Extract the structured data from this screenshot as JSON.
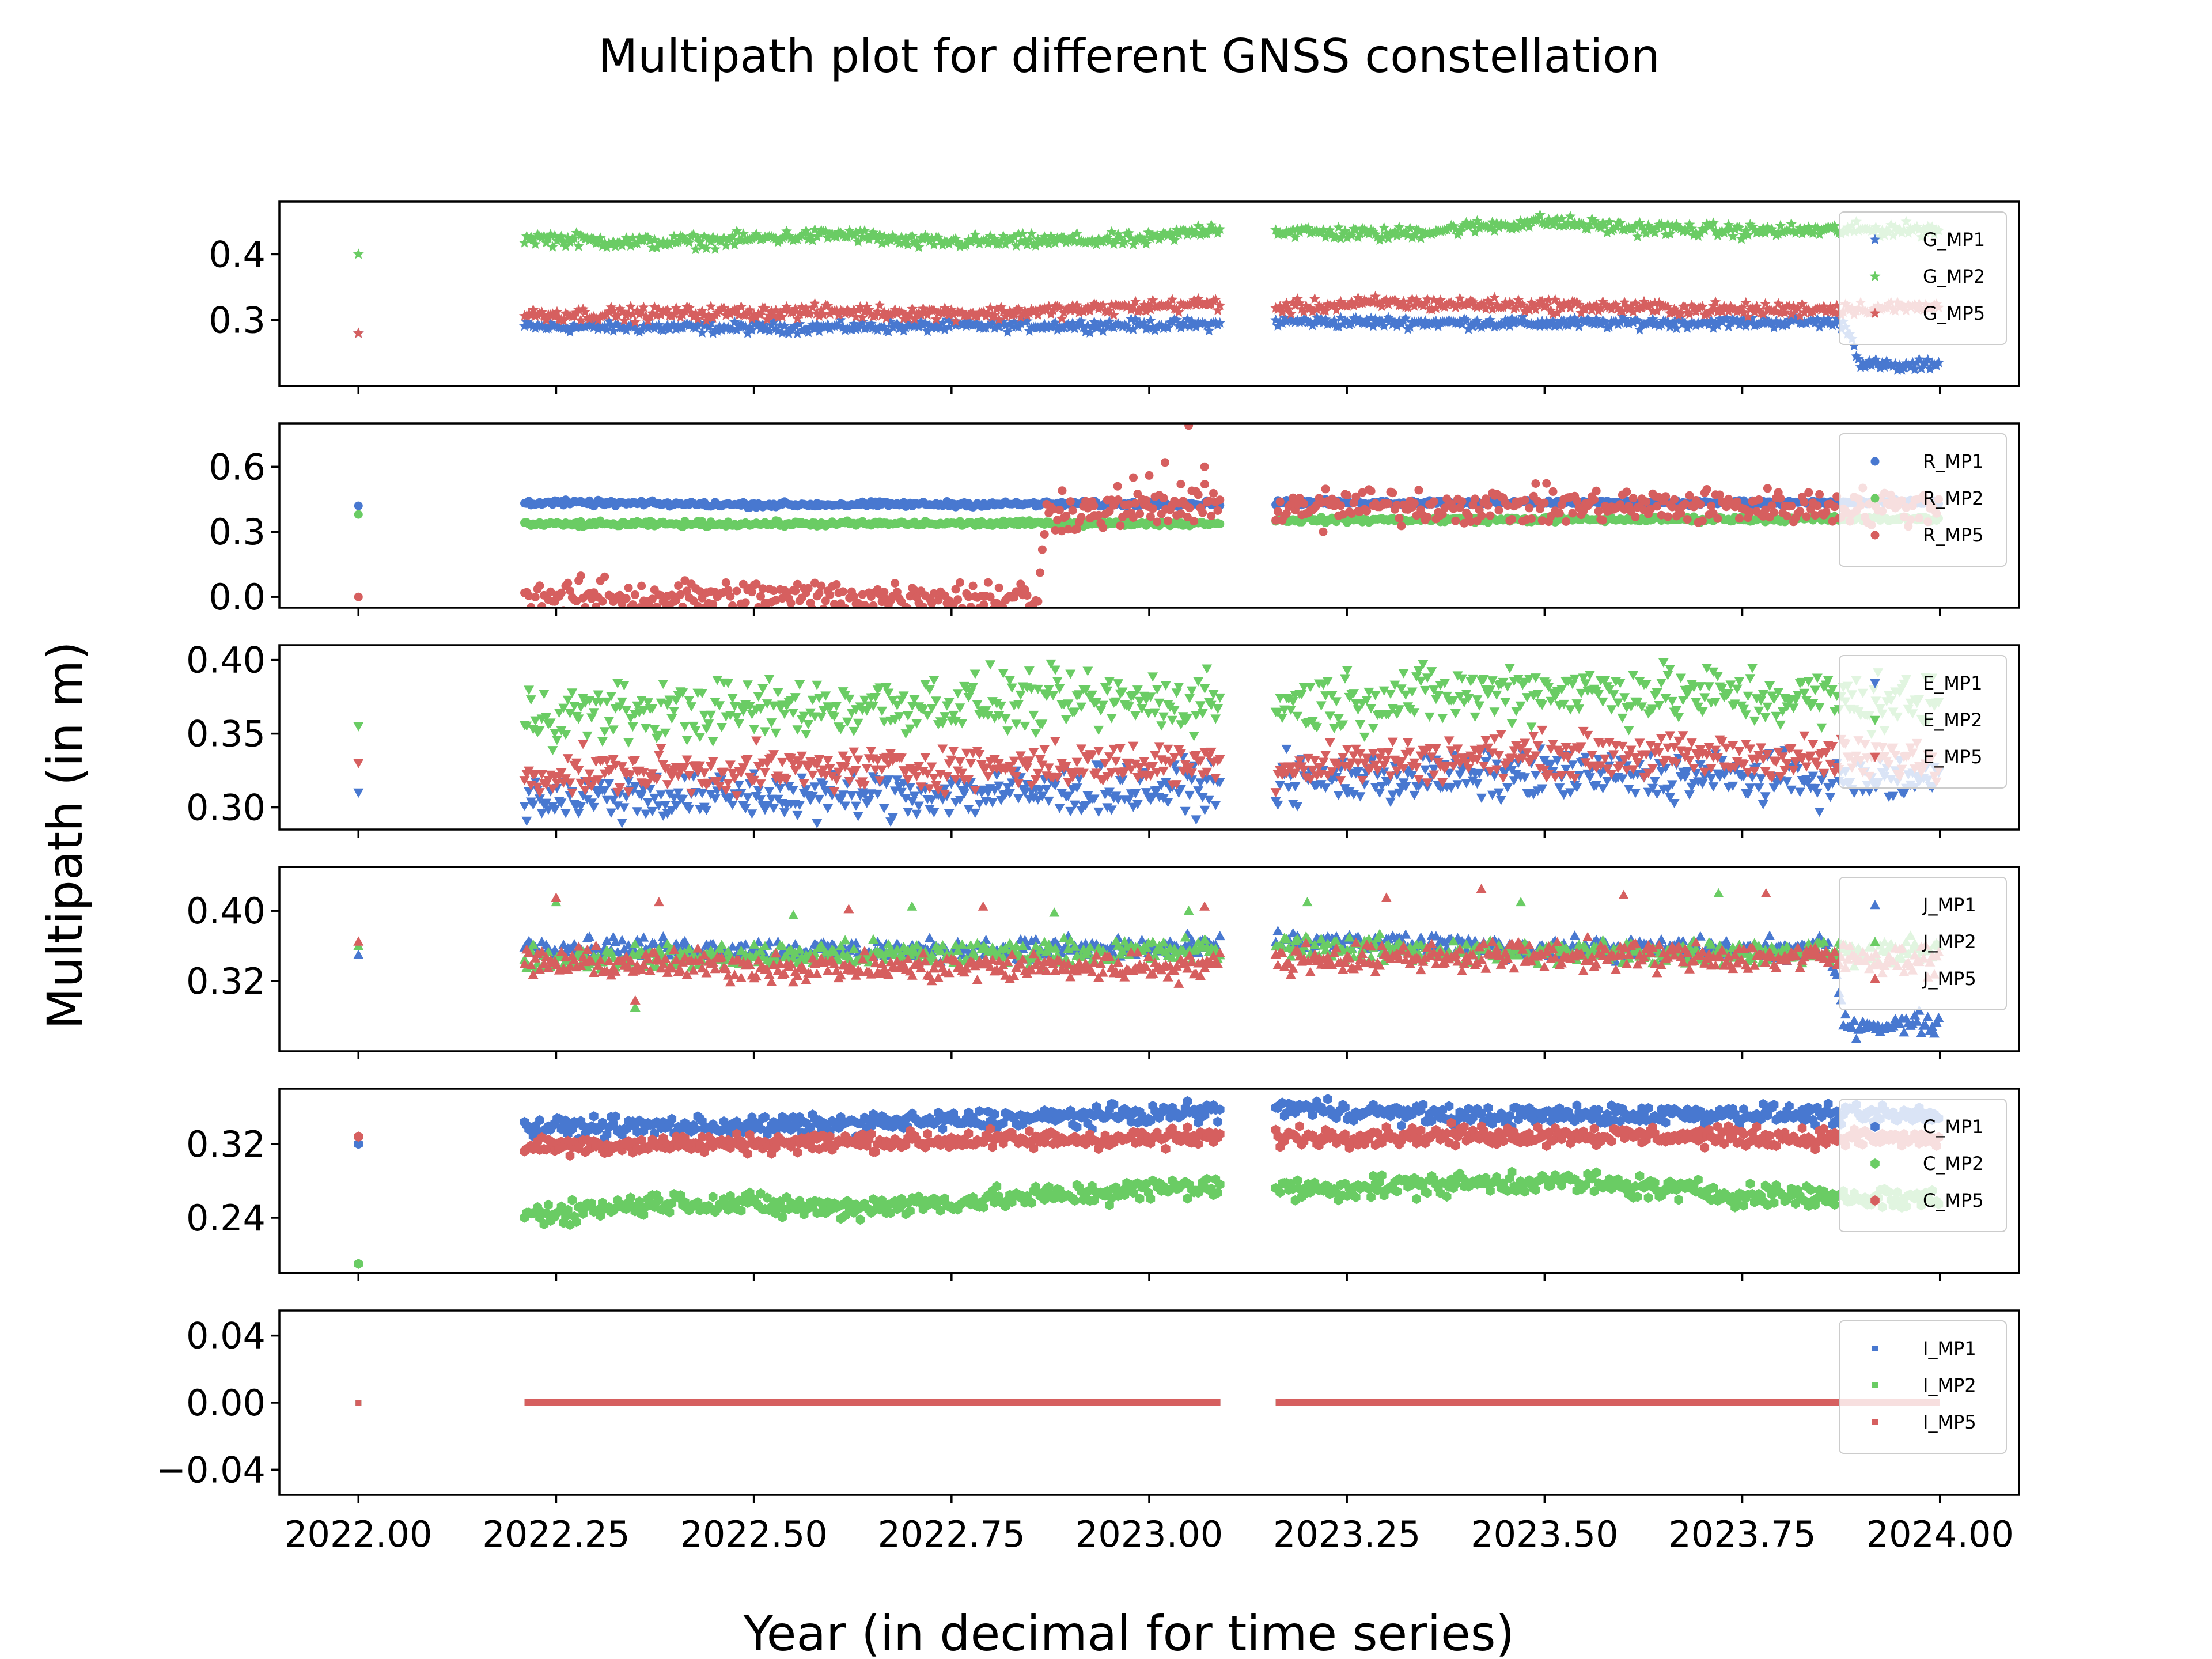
{
  "chart_data": {
    "type": "scatter",
    "title": "Multipath plot for different GNSS constellation",
    "xlabel": "Year (in decimal for time series)",
    "ylabel": "Multipath (in m)",
    "xlim": [
      2021.9,
      2024.1
    ],
    "xticks": [
      2022.0,
      2022.25,
      2022.5,
      2022.75,
      2023.0,
      2023.25,
      2023.5,
      2023.75,
      2024.0
    ],
    "xtick_labels": [
      "2022.00",
      "2022.25",
      "2022.50",
      "2022.75",
      "2023.00",
      "2023.25",
      "2023.50",
      "2023.75",
      "2024.00"
    ],
    "grid": false,
    "legend_location": "right",
    "colors": {
      "MP1": "#4878d0",
      "MP2": "#6acc64",
      "MP5": "#d65f5f"
    },
    "single_epoch": 2022.0,
    "segments": [
      [
        2022.21,
        2023.09
      ],
      [
        2023.16,
        2024.0
      ]
    ],
    "panels": [
      {
        "constellation": "G",
        "marker": "star",
        "ylim": [
          0.2,
          0.48
        ],
        "yticks": [
          0.3,
          0.4
        ],
        "ytick_labels": [
          "0.3",
          "0.4"
        ],
        "series": [
          {
            "name": "G_MP1",
            "initial": 0.28,
            "noise": 0.004,
            "trend": [
              [
                2022.21,
                0.29
              ],
              [
                2022.5,
                0.288
              ],
              [
                2022.75,
                0.291
              ],
              [
                2023.08,
                0.293
              ],
              [
                2023.16,
                0.298
              ],
              [
                2023.5,
                0.295
              ],
              [
                2023.85,
                0.297
              ],
              [
                2023.88,
                0.295
              ],
              [
                2023.9,
                0.235
              ],
              [
                2023.95,
                0.228
              ],
              [
                2024.0,
                0.235
              ]
            ]
          },
          {
            "name": "G_MP2",
            "initial": 0.4,
            "noise": 0.005,
            "trend": [
              [
                2022.21,
                0.425
              ],
              [
                2022.35,
                0.418
              ],
              [
                2022.45,
                0.42
              ],
              [
                2022.55,
                0.427
              ],
              [
                2022.62,
                0.43
              ],
              [
                2022.7,
                0.418
              ],
              [
                2022.85,
                0.42
              ],
              [
                2023.0,
                0.422
              ],
              [
                2023.08,
                0.44
              ],
              [
                2023.16,
                0.435
              ],
              [
                2023.3,
                0.43
              ],
              [
                2023.5,
                0.45
              ],
              [
                2023.6,
                0.44
              ],
              [
                2023.75,
                0.435
              ],
              [
                2024.0,
                0.438
              ]
            ]
          },
          {
            "name": "G_MP5",
            "initial": 0.28,
            "noise": 0.005,
            "trend": [
              [
                2022.21,
                0.308
              ],
              [
                2022.4,
                0.31
              ],
              [
                2022.6,
                0.313
              ],
              [
                2022.8,
                0.31
              ],
              [
                2023.08,
                0.325
              ],
              [
                2023.16,
                0.318
              ],
              [
                2023.3,
                0.326
              ],
              [
                2023.5,
                0.322
              ],
              [
                2023.75,
                0.315
              ],
              [
                2024.0,
                0.32
              ]
            ]
          }
        ]
      },
      {
        "constellation": "R",
        "marker": "circle",
        "ylim": [
          -0.05,
          0.8
        ],
        "yticks": [
          0.0,
          0.3,
          0.6
        ],
        "ytick_labels": [
          "0.0",
          "0.3",
          "0.6"
        ],
        "series": [
          {
            "name": "R_MP1",
            "initial": 0.42,
            "noise": 0.006,
            "trend": [
              [
                2022.21,
                0.435
              ],
              [
                2022.5,
                0.425
              ],
              [
                2023.08,
                0.43
              ],
              [
                2023.16,
                0.435
              ],
              [
                2024.0,
                0.435
              ]
            ]
          },
          {
            "name": "R_MP2",
            "initial": 0.38,
            "noise": 0.006,
            "trend": [
              [
                2022.21,
                0.335
              ],
              [
                2023.08,
                0.34
              ],
              [
                2023.16,
                0.355
              ],
              [
                2024.0,
                0.36
              ]
            ]
          },
          {
            "name": "R_MP5",
            "initial": 0.0,
            "noise": 0.04,
            "trend": [
              [
                2022.21,
                0.0
              ],
              [
                2022.86,
                0.0
              ],
              [
                2022.87,
                0.38
              ],
              [
                2023.08,
                0.42
              ],
              [
                2023.16,
                0.42
              ],
              [
                2024.0,
                0.415
              ]
            ],
            "outliers": [
              [
                2022.89,
                0.49
              ],
              [
                2022.93,
                0.42
              ],
              [
                2022.96,
                0.51
              ],
              [
                2022.98,
                0.55
              ],
              [
                2023.0,
                0.56
              ],
              [
                2023.02,
                0.62
              ],
              [
                2023.04,
                0.52
              ],
              [
                2023.05,
                0.79
              ],
              [
                2023.07,
                0.6
              ],
              [
                2023.22,
                0.3
              ]
            ]
          }
        ]
      },
      {
        "constellation": "E",
        "marker": "triangle-down",
        "ylim": [
          0.285,
          0.41
        ],
        "yticks": [
          0.3,
          0.35,
          0.4
        ],
        "ytick_labels": [
          "0.30",
          "0.35",
          "0.40"
        ],
        "series": [
          {
            "name": "E_MP1",
            "initial": 0.31,
            "noise": 0.008,
            "trend": [
              [
                2022.21,
                0.307
              ],
              [
                2022.6,
                0.308
              ],
              [
                2023.08,
                0.313
              ],
              [
                2023.16,
                0.318
              ],
              [
                2023.5,
                0.322
              ],
              [
                2024.0,
                0.318
              ]
            ]
          },
          {
            "name": "E_MP2",
            "initial": 0.355,
            "noise": 0.01,
            "trend": [
              [
                2022.21,
                0.363
              ],
              [
                2022.5,
                0.366
              ],
              [
                2022.75,
                0.371
              ],
              [
                2023.08,
                0.372
              ],
              [
                2023.16,
                0.37
              ],
              [
                2023.5,
                0.38
              ],
              [
                2024.0,
                0.37
              ]
            ]
          },
          {
            "name": "E_MP5",
            "initial": 0.33,
            "noise": 0.007,
            "trend": [
              [
                2022.21,
                0.322
              ],
              [
                2022.6,
                0.326
              ],
              [
                2023.08,
                0.33
              ],
              [
                2023.16,
                0.328
              ],
              [
                2023.5,
                0.336
              ],
              [
                2024.0,
                0.332
              ]
            ]
          }
        ]
      },
      {
        "constellation": "J",
        "marker": "triangle-up",
        "ylim": [
          0.24,
          0.45
        ],
        "yticks": [
          0.32,
          0.4
        ],
        "ytick_labels": [
          "0.32",
          "0.40"
        ],
        "series": [
          {
            "name": "J_MP1",
            "initial": 0.35,
            "noise": 0.006,
            "trend": [
              [
                2022.21,
                0.36
              ],
              [
                2022.6,
                0.355
              ],
              [
                2023.08,
                0.358
              ],
              [
                2023.16,
                0.365
              ],
              [
                2023.5,
                0.357
              ],
              [
                2023.86,
                0.357
              ],
              [
                2023.88,
                0.27
              ],
              [
                2024.0,
                0.272
              ]
            ]
          },
          {
            "name": "J_MP2",
            "initial": 0.36,
            "noise": 0.007,
            "trend": [
              [
                2022.21,
                0.345
              ],
              [
                2022.6,
                0.35
              ],
              [
                2023.08,
                0.355
              ],
              [
                2023.16,
                0.36
              ],
              [
                2023.5,
                0.352
              ],
              [
                2024.0,
                0.355
              ]
            ],
            "outliers": [
              [
                2022.25,
                0.41
              ],
              [
                2022.35,
                0.29
              ],
              [
                2022.55,
                0.395
              ],
              [
                2022.7,
                0.405
              ],
              [
                2022.88,
                0.398
              ],
              [
                2023.05,
                0.4
              ],
              [
                2023.2,
                0.41
              ],
              [
                2023.47,
                0.41
              ],
              [
                2023.72,
                0.42
              ]
            ]
          },
          {
            "name": "J_MP5",
            "initial": 0.365,
            "noise": 0.008,
            "trend": [
              [
                2022.21,
                0.342
              ],
              [
                2022.6,
                0.335
              ],
              [
                2023.08,
                0.338
              ],
              [
                2023.16,
                0.345
              ],
              [
                2023.5,
                0.35
              ],
              [
                2024.0,
                0.345
              ]
            ],
            "outliers": [
              [
                2022.25,
                0.415
              ],
              [
                2022.35,
                0.298
              ],
              [
                2022.38,
                0.41
              ],
              [
                2022.62,
                0.402
              ],
              [
                2022.79,
                0.405
              ],
              [
                2023.07,
                0.405
              ],
              [
                2023.3,
                0.415
              ],
              [
                2023.42,
                0.425
              ],
              [
                2023.6,
                0.418
              ],
              [
                2023.78,
                0.42
              ]
            ]
          }
        ]
      },
      {
        "constellation": "C",
        "marker": "hexagon",
        "ylim": [
          0.18,
          0.38
        ],
        "yticks": [
          0.24,
          0.32
        ],
        "ytick_labels": [
          "0.24",
          "0.32"
        ],
        "series": [
          {
            "name": "C_MP1",
            "initial": 0.32,
            "noise": 0.005,
            "trend": [
              [
                2022.21,
                0.338
              ],
              [
                2022.55,
                0.34
              ],
              [
                2022.75,
                0.345
              ],
              [
                2023.08,
                0.355
              ],
              [
                2023.16,
                0.36
              ],
              [
                2023.4,
                0.35
              ],
              [
                2023.75,
                0.353
              ],
              [
                2024.0,
                0.35
              ]
            ]
          },
          {
            "name": "C_MP2",
            "initial": 0.19,
            "noise": 0.006,
            "trend": [
              [
                2022.21,
                0.243
              ],
              [
                2022.4,
                0.258
              ],
              [
                2022.6,
                0.25
              ],
              [
                2022.75,
                0.257
              ],
              [
                2023.08,
                0.275
              ],
              [
                2023.16,
                0.27
              ],
              [
                2023.5,
                0.28
              ],
              [
                2023.75,
                0.265
              ],
              [
                2024.0,
                0.26
              ]
            ]
          },
          {
            "name": "C_MP5",
            "initial": 0.328,
            "noise": 0.005,
            "trend": [
              [
                2022.21,
                0.318
              ],
              [
                2022.6,
                0.322
              ],
              [
                2023.08,
                0.327
              ],
              [
                2023.16,
                0.328
              ],
              [
                2023.5,
                0.33
              ],
              [
                2024.0,
                0.325
              ]
            ]
          }
        ]
      },
      {
        "constellation": "I",
        "marker": "square",
        "ylim": [
          -0.055,
          0.055
        ],
        "yticks": [
          -0.04,
          0.0,
          0.04
        ],
        "ytick_labels": [
          "−0.04",
          "0.00",
          "0.04"
        ],
        "series": [
          {
            "name": "I_MP1",
            "initial": 0.0,
            "noise": 0.0,
            "trend": [
              [
                2022.21,
                0.0
              ],
              [
                2024.0,
                0.0
              ]
            ]
          },
          {
            "name": "I_MP2",
            "initial": 0.0,
            "noise": 0.0,
            "trend": [
              [
                2022.21,
                0.0
              ],
              [
                2024.0,
                0.0
              ]
            ]
          },
          {
            "name": "I_MP5",
            "initial": 0.0,
            "noise": 0.0,
            "trend": [
              [
                2022.21,
                0.0
              ],
              [
                2024.0,
                0.0
              ]
            ]
          }
        ]
      }
    ]
  }
}
